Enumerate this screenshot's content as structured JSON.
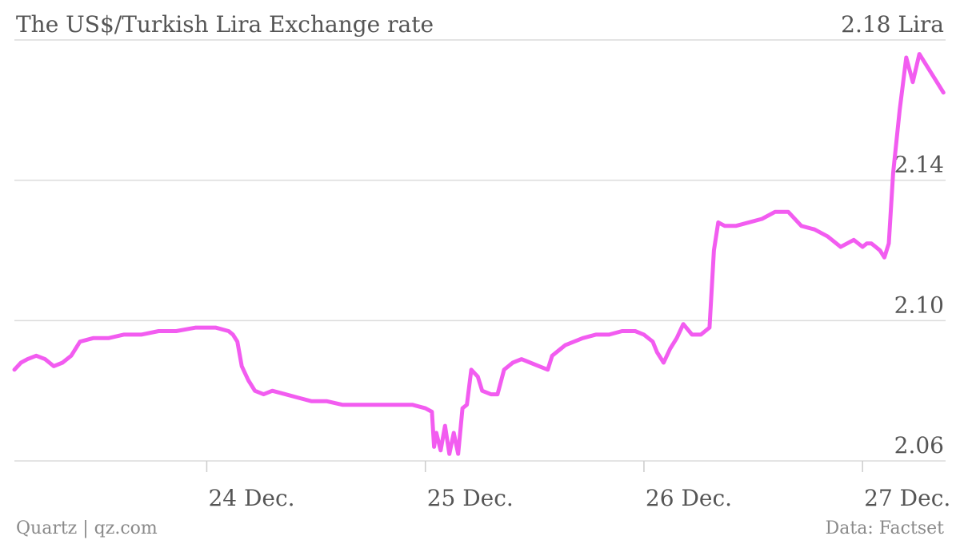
{
  "chart_data": {
    "type": "line",
    "title": "The US$/Turkish Lira Exchange rate",
    "xlabel": "",
    "ylabel": "",
    "y_ticks": [
      {
        "value": 2.06,
        "label": "2.06"
      },
      {
        "value": 2.1,
        "label": "2.10"
      },
      {
        "value": 2.14,
        "label": "2.14"
      },
      {
        "value": 2.18,
        "label": "2.18 Lira"
      }
    ],
    "ylim": [
      2.06,
      2.18
    ],
    "xlim": [
      23.12,
      27.38
    ],
    "x_ticks": [
      {
        "value": 24,
        "label": "24 Dec."
      },
      {
        "value": 25,
        "label": "25 Dec."
      },
      {
        "value": 26,
        "label": "26 Dec."
      },
      {
        "value": 27,
        "label": "27 Dec."
      }
    ],
    "grid": "horizontal",
    "legend": "none",
    "color": "#f25cf0",
    "series": [
      {
        "x": [
          23.12,
          23.15,
          23.18,
          23.22,
          23.26,
          23.3,
          23.34,
          23.38,
          23.42,
          23.48,
          23.55,
          23.62,
          23.7,
          23.78,
          23.86,
          23.95,
          24.04,
          24.1,
          24.12,
          24.14,
          24.16,
          24.19,
          24.22,
          24.26,
          24.3,
          24.36,
          24.42,
          24.48,
          24.55,
          24.62,
          24.7,
          24.78,
          24.86,
          24.94,
          25.0,
          25.03,
          25.04,
          25.05,
          25.07,
          25.09,
          25.11,
          25.13,
          25.15,
          25.17,
          25.19,
          25.21,
          25.24,
          25.26,
          25.3,
          25.33,
          25.36,
          25.4,
          25.44,
          25.48,
          25.52,
          25.56,
          25.58,
          25.62,
          25.64,
          25.68,
          25.72,
          25.78,
          25.84,
          25.9,
          25.96,
          26.0,
          26.04,
          26.06,
          26.09,
          26.12,
          26.15,
          26.18,
          26.22,
          26.26,
          26.3,
          26.32,
          26.34,
          26.37,
          26.42,
          26.48,
          26.54,
          26.6,
          26.66,
          26.72,
          26.78,
          26.84,
          26.9,
          26.96,
          27.0,
          27.02,
          27.04,
          27.06,
          27.08,
          27.1,
          27.12,
          27.14,
          27.17,
          27.2,
          27.23,
          27.26,
          27.3,
          27.34,
          27.37
        ],
        "y": [
          2.086,
          2.088,
          2.089,
          2.09,
          2.089,
          2.087,
          2.088,
          2.09,
          2.094,
          2.095,
          2.095,
          2.096,
          2.096,
          2.097,
          2.097,
          2.098,
          2.098,
          2.097,
          2.096,
          2.094,
          2.087,
          2.083,
          2.08,
          2.079,
          2.08,
          2.079,
          2.078,
          2.077,
          2.077,
          2.076,
          2.076,
          2.076,
          2.076,
          2.076,
          2.075,
          2.074,
          2.064,
          2.068,
          2.063,
          2.07,
          2.062,
          2.068,
          2.062,
          2.075,
          2.076,
          2.086,
          2.084,
          2.08,
          2.079,
          2.079,
          2.086,
          2.088,
          2.089,
          2.088,
          2.087,
          2.086,
          2.09,
          2.092,
          2.093,
          2.094,
          2.095,
          2.096,
          2.096,
          2.097,
          2.097,
          2.096,
          2.094,
          2.091,
          2.088,
          2.092,
          2.095,
          2.099,
          2.096,
          2.096,
          2.098,
          2.12,
          2.128,
          2.127,
          2.127,
          2.128,
          2.129,
          2.131,
          2.131,
          2.127,
          2.126,
          2.124,
          2.121,
          2.123,
          2.121,
          2.122,
          2.122,
          2.121,
          2.12,
          2.118,
          2.122,
          2.142,
          2.16,
          2.175,
          2.168,
          2.176,
          2.172,
          2.168,
          2.165
        ]
      }
    ]
  },
  "footer": {
    "source_left": "Quartz | qz.com",
    "source_right": "Data: Factset"
  }
}
